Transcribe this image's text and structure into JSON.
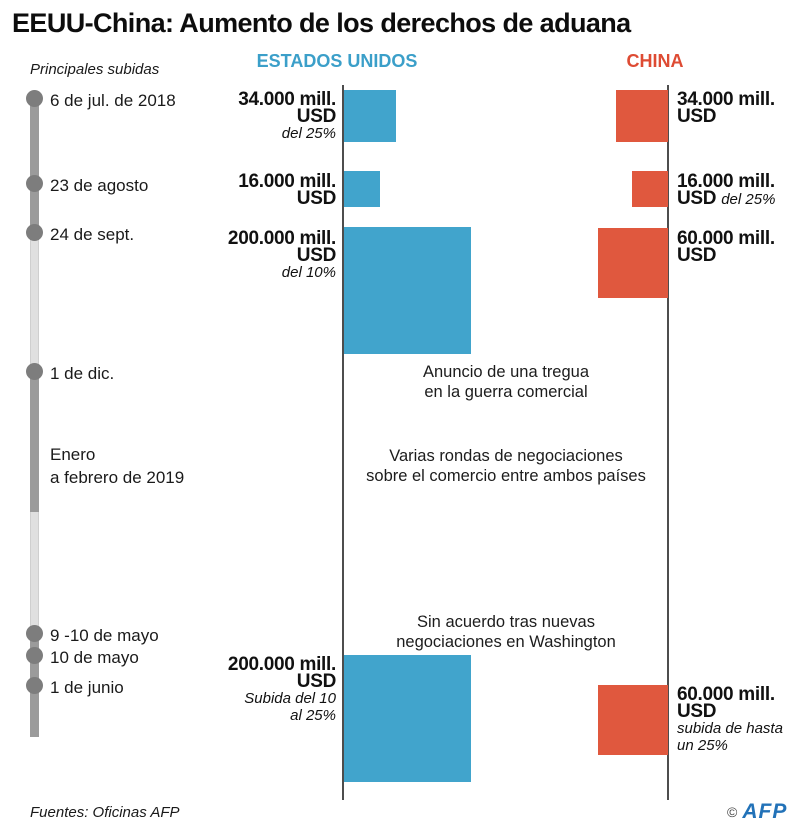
{
  "title": "EEUU-China: Aumento de los derechos de aduana",
  "subtitle": "Principales subidas",
  "columns": {
    "us": "ESTADOS UNIDOS",
    "china": "CHINA"
  },
  "footer": {
    "source": "Fuentes: Oficinas AFP",
    "copyright_symbol": "©",
    "credit_logo": "AFP"
  },
  "colors": {
    "us_blue": "#41A4CC",
    "us_header_blue": "#3B9FC9",
    "china_red": "#E0583E",
    "china_header_red": "#DE4B33",
    "timeline_dark_gray": "#9B9B9B",
    "timeline_light_gray": "#E0E0E0",
    "timeline_dot_gray": "#7D7D7D",
    "axis_line_gray": "#4D4D4D",
    "afp_logo_blue": "#2272B8"
  },
  "chart_data": {
    "type": "bar",
    "title": "EEUU-China: Aumento de los derechos de aduana",
    "subtitle": "Principales subidas",
    "unit": "millones de USD",
    "layout": "paired timeline squares, area proportional to value; US bars grow right from left axis, China bars grow left from right axis",
    "series": [
      {
        "name": "ESTADOS UNIDOS",
        "color": "#41A4CC"
      },
      {
        "name": "CHINA",
        "color": "#E0583E"
      }
    ],
    "events": [
      {
        "date": "6 de jul. de 2018",
        "us_value": 34000,
        "us_label": "34.000 mill.\nUSD",
        "us_note": "del 25%",
        "china_value": 34000,
        "china_label": "34.000 mill.\nUSD"
      },
      {
        "date": "23 de agosto",
        "us_value": 16000,
        "us_label": "16.000 mill.\nUSD",
        "china_value": 16000,
        "china_label": "16.000 mill.",
        "china_usd_word": "USD",
        "china_note_inline": "del 25%"
      },
      {
        "date": "24 de sept.",
        "us_value": 200000,
        "us_label": "200.000 mill.\nUSD",
        "us_note": "del 10%",
        "china_value": 60000,
        "china_label": "60.000 mill.\nUSD"
      },
      {
        "date": "1 de dic.",
        "annotation": "Anuncio de una tregua\nen la guerra comercial"
      },
      {
        "date": "Enero\na febrero de 2019",
        "annotation": "Varias rondas de negociaciones\nsobre el comercio entre ambos países"
      },
      {
        "date": "9 -10 de mayo",
        "annotation": "Sin acuerdo tras nuevas\nnegociaciones en Washington"
      },
      {
        "date": "10 de mayo",
        "us_value": 200000,
        "us_label": "200.000 mill.\nUSD",
        "us_note": "Subida del 10\nal 25%"
      },
      {
        "date": "1 de junio",
        "china_value": 60000,
        "china_label": "60.000 mill.\nUSD",
        "china_note": "subida de hasta\nun 25%"
      }
    ]
  }
}
